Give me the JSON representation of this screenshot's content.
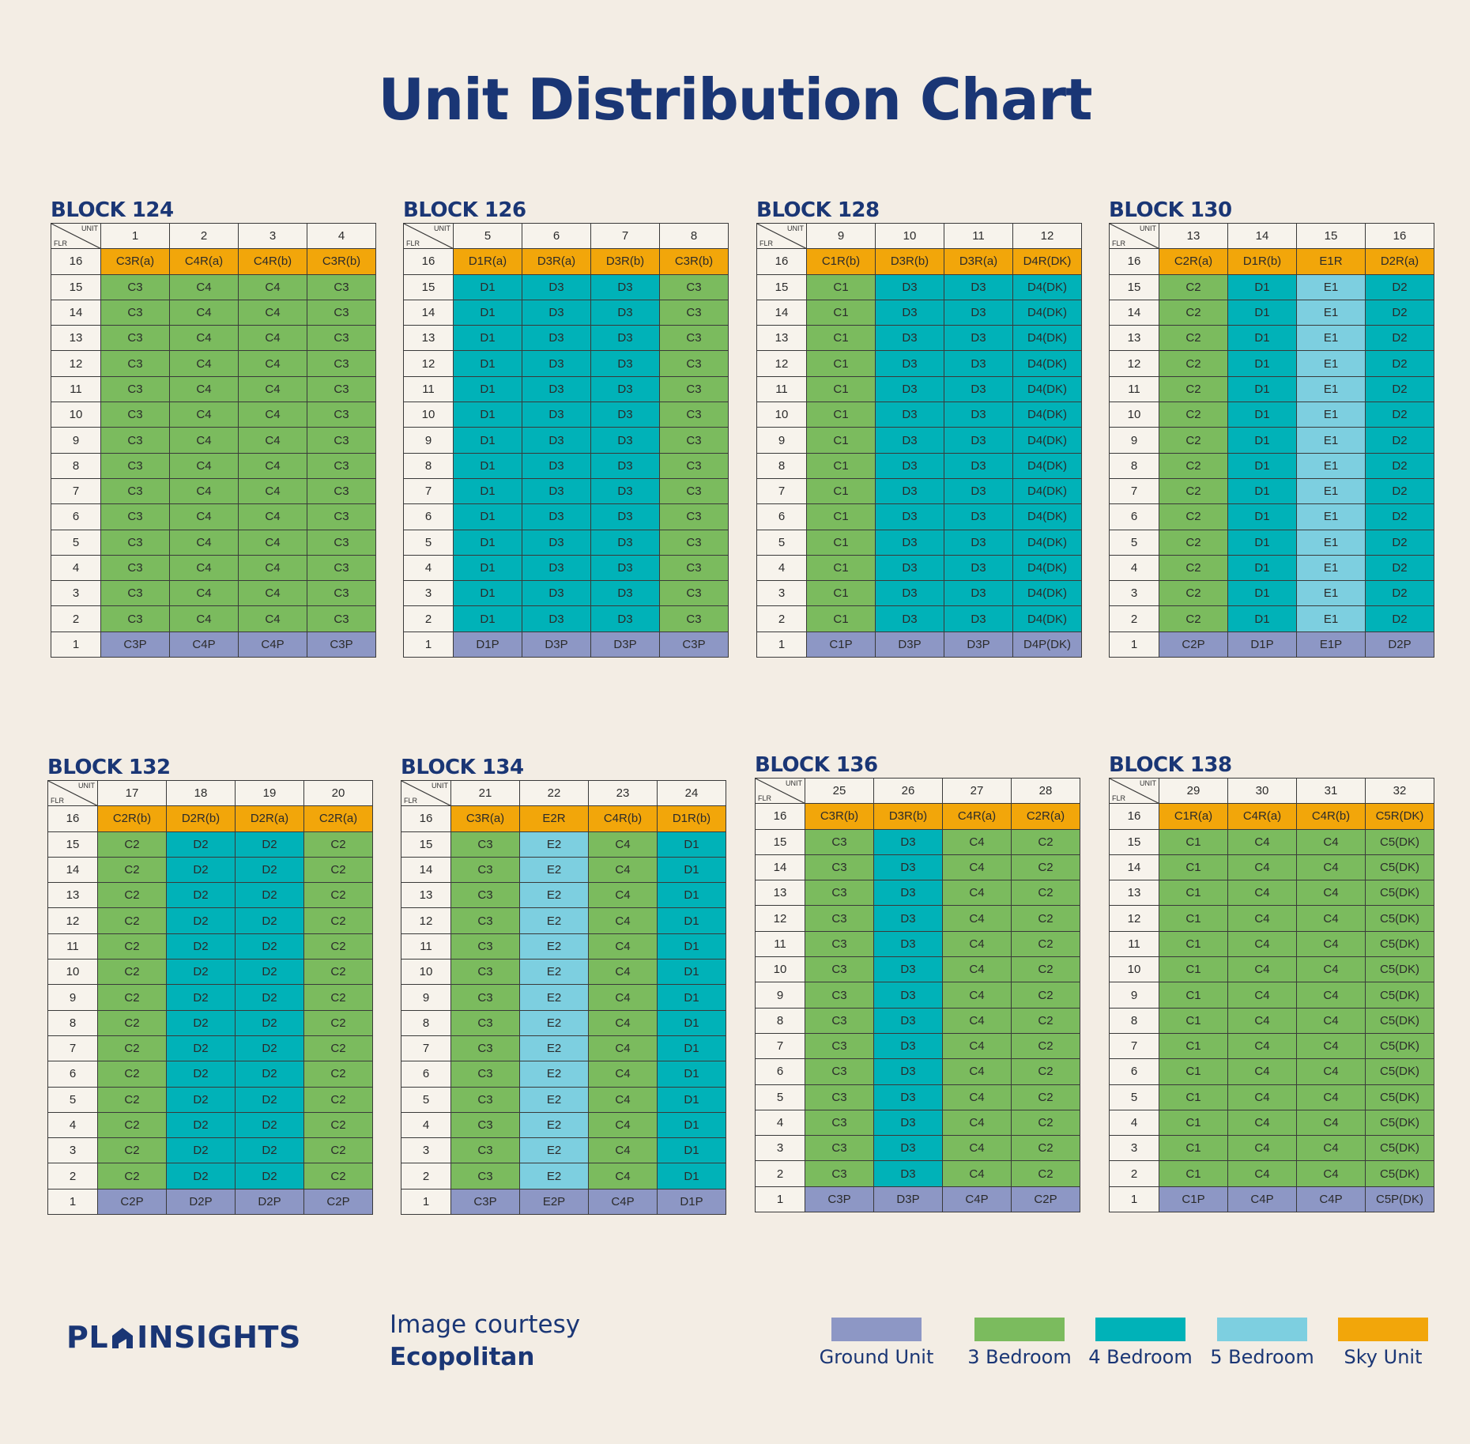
{
  "title": "Unit Distribution Chart",
  "colors": {
    "ground": "#8d97c5",
    "three_bedroom": "#7bbb5e",
    "four_bedroom": "#00b2b8",
    "five_bedroom": "#7dcfe0",
    "sky": "#f2a60a",
    "title": "#1a3675"
  },
  "corner": {
    "unit": "UNIT",
    "flr": "FLR"
  },
  "footer": {
    "brand_left": "PL",
    "brand_right": "INSIGHTS",
    "courtesy_line": "Image courtesy",
    "courtesy_name": "Ecopolitan"
  },
  "legend": [
    {
      "label": "Ground Unit",
      "key": "ground"
    },
    {
      "label": "3 Bedroom",
      "key": "three_bedroom"
    },
    {
      "label": "4 Bedroom",
      "key": "four_bedroom"
    },
    {
      "label": "5 Bedroom",
      "key": "five_bedroom"
    },
    {
      "label": "Sky Unit",
      "key": "sky"
    }
  ],
  "chart_data": {
    "type": "table",
    "title": "Unit Distribution Chart",
    "floors": [
      "16",
      "15",
      "14",
      "13",
      "12",
      "11",
      "10",
      "9",
      "8",
      "7",
      "6",
      "5",
      "4",
      "3",
      "2",
      "1"
    ],
    "blocks": [
      {
        "name": "BLOCK 124",
        "units": [
          "1",
          "2",
          "3",
          "4"
        ],
        "columns": [
          {
            "top": "C3R(a)",
            "typical": "C3",
            "typical_type": "three_bedroom",
            "ground": "C3P"
          },
          {
            "top": "C4R(a)",
            "typical": "C4",
            "typical_type": "three_bedroom",
            "ground": "C4P"
          },
          {
            "top": "C4R(b)",
            "typical": "C4",
            "typical_type": "three_bedroom",
            "ground": "C4P"
          },
          {
            "top": "C3R(b)",
            "typical": "C3",
            "typical_type": "three_bedroom",
            "ground": "C3P"
          }
        ]
      },
      {
        "name": "BLOCK 126",
        "units": [
          "5",
          "6",
          "7",
          "8"
        ],
        "columns": [
          {
            "top": "D1R(a)",
            "typical": "D1",
            "typical_type": "four_bedroom",
            "ground": "D1P"
          },
          {
            "top": "D3R(a)",
            "typical": "D3",
            "typical_type": "four_bedroom",
            "ground": "D3P"
          },
          {
            "top": "D3R(b)",
            "typical": "D3",
            "typical_type": "four_bedroom",
            "ground": "D3P"
          },
          {
            "top": "C3R(b)",
            "typical": "C3",
            "typical_type": "three_bedroom",
            "ground": "C3P"
          }
        ]
      },
      {
        "name": "BLOCK 128",
        "units": [
          "9",
          "10",
          "11",
          "12"
        ],
        "columns": [
          {
            "top": "C1R(b)",
            "typical": "C1",
            "typical_type": "three_bedroom",
            "ground": "C1P"
          },
          {
            "top": "D3R(b)",
            "typical": "D3",
            "typical_type": "four_bedroom",
            "ground": "D3P"
          },
          {
            "top": "D3R(a)",
            "typical": "D3",
            "typical_type": "four_bedroom",
            "ground": "D3P"
          },
          {
            "top": "D4R(DK)",
            "typical": "D4(DK)",
            "typical_type": "four_bedroom",
            "ground": "D4P(DK)"
          }
        ]
      },
      {
        "name": "BLOCK 130",
        "units": [
          "13",
          "14",
          "15",
          "16"
        ],
        "columns": [
          {
            "top": "C2R(a)",
            "typical": "C2",
            "typical_type": "three_bedroom",
            "ground": "C2P"
          },
          {
            "top": "D1R(b)",
            "typical": "D1",
            "typical_type": "four_bedroom",
            "ground": "D1P"
          },
          {
            "top": "E1R",
            "typical": "E1",
            "typical_type": "five_bedroom",
            "ground": "E1P"
          },
          {
            "top": "D2R(a)",
            "typical": "D2",
            "typical_type": "four_bedroom",
            "ground": "D2P"
          }
        ]
      },
      {
        "name": "BLOCK 132",
        "units": [
          "17",
          "18",
          "19",
          "20"
        ],
        "columns": [
          {
            "top": "C2R(b)",
            "typical": "C2",
            "typical_type": "three_bedroom",
            "ground": "C2P"
          },
          {
            "top": "D2R(b)",
            "typical": "D2",
            "typical_type": "four_bedroom",
            "ground": "D2P"
          },
          {
            "top": "D2R(a)",
            "typical": "D2",
            "typical_type": "four_bedroom",
            "ground": "D2P"
          },
          {
            "top": "C2R(a)",
            "typical": "C2",
            "typical_type": "three_bedroom",
            "ground": "C2P"
          }
        ]
      },
      {
        "name": "BLOCK 134",
        "units": [
          "21",
          "22",
          "23",
          "24"
        ],
        "columns": [
          {
            "top": "C3R(a)",
            "typical": "C3",
            "typical_type": "three_bedroom",
            "ground": "C3P"
          },
          {
            "top": "E2R",
            "typical": "E2",
            "typical_type": "five_bedroom",
            "ground": "E2P"
          },
          {
            "top": "C4R(b)",
            "typical": "C4",
            "typical_type": "three_bedroom",
            "ground": "C4P"
          },
          {
            "top": "D1R(b)",
            "typical": "D1",
            "typical_type": "four_bedroom",
            "ground": "D1P"
          }
        ]
      },
      {
        "name": "BLOCK 136",
        "units": [
          "25",
          "26",
          "27",
          "28"
        ],
        "columns": [
          {
            "top": "C3R(b)",
            "typical": "C3",
            "typical_type": "three_bedroom",
            "ground": "C3P"
          },
          {
            "top": "D3R(b)",
            "typical": "D3",
            "typical_type": "four_bedroom",
            "ground": "D3P"
          },
          {
            "top": "C4R(a)",
            "typical": "C4",
            "typical_type": "three_bedroom",
            "ground": "C4P"
          },
          {
            "top": "C2R(a)",
            "typical": "C2",
            "typical_type": "three_bedroom",
            "ground": "C2P"
          }
        ]
      },
      {
        "name": "BLOCK 138",
        "units": [
          "29",
          "30",
          "31",
          "32"
        ],
        "columns": [
          {
            "top": "C1R(a)",
            "typical": "C1",
            "typical_type": "three_bedroom",
            "ground": "C1P"
          },
          {
            "top": "C4R(a)",
            "typical": "C4",
            "typical_type": "three_bedroom",
            "ground": "C4P"
          },
          {
            "top": "C4R(b)",
            "typical": "C4",
            "typical_type": "three_bedroom",
            "ground": "C4P"
          },
          {
            "top": "C5R(DK)",
            "typical": "C5(DK)",
            "typical_type": "three_bedroom",
            "ground": "C5P(DK)"
          }
        ]
      }
    ]
  }
}
